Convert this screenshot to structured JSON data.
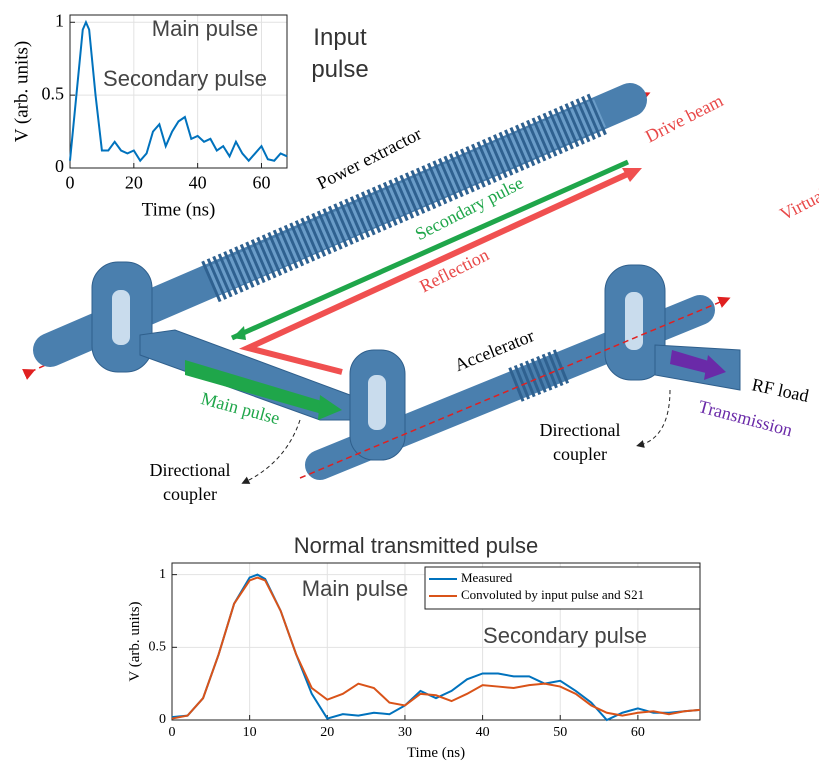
{
  "chart_data": [
    {
      "type": "line",
      "title": "Input pulse",
      "xlabel": "Time (ns)",
      "ylabel": "V (arb. units)",
      "annotations": [
        "Main pulse",
        "Secondary pulse"
      ],
      "x": [
        0,
        2,
        4,
        5,
        6,
        8,
        10,
        12,
        14,
        16,
        18,
        20,
        22,
        24,
        26,
        28,
        30,
        32,
        34,
        36,
        38,
        40,
        42,
        44,
        46,
        48,
        50,
        52,
        54,
        56,
        58,
        60,
        62,
        64,
        66,
        68
      ],
      "values": [
        0.05,
        0.5,
        0.95,
        1.0,
        0.95,
        0.5,
        0.12,
        0.12,
        0.18,
        0.12,
        0.1,
        0.12,
        0.05,
        0.1,
        0.25,
        0.3,
        0.15,
        0.25,
        0.32,
        0.35,
        0.2,
        0.22,
        0.18,
        0.2,
        0.12,
        0.15,
        0.08,
        0.18,
        0.1,
        0.05,
        0.1,
        0.15,
        0.06,
        0.05,
        0.1,
        0.08
      ],
      "color": "#0072bd",
      "xlim": [
        0,
        68
      ],
      "xticks": [
        0,
        20,
        40,
        60
      ],
      "ylim": [
        0,
        1.05
      ],
      "yticks": [
        0,
        0.5,
        1
      ],
      "grid": true
    },
    {
      "type": "line",
      "title": "Normal transmitted pulse",
      "xlabel": "Time (ns)",
      "ylabel": "V (arb. units)",
      "annotations": [
        "Main pulse",
        "Secondary pulse"
      ],
      "x": [
        0,
        2,
        4,
        6,
        8,
        10,
        11,
        12,
        14,
        16,
        18,
        20,
        22,
        24,
        26,
        28,
        30,
        32,
        34,
        36,
        38,
        40,
        42,
        44,
        46,
        48,
        50,
        52,
        54,
        56,
        58,
        60,
        62,
        64,
        66,
        68
      ],
      "series": [
        {
          "name": "Measured",
          "color": "#0072bd",
          "values": [
            0.02,
            0.03,
            0.15,
            0.45,
            0.8,
            0.98,
            1.0,
            0.97,
            0.75,
            0.45,
            0.18,
            0.01,
            0.04,
            0.03,
            0.05,
            0.04,
            0.1,
            0.2,
            0.15,
            0.2,
            0.28,
            0.32,
            0.32,
            0.3,
            0.3,
            0.25,
            0.27,
            0.2,
            0.12,
            0.0,
            0.05,
            0.08,
            0.05,
            0.05,
            0.06,
            0.07
          ]
        },
        {
          "name": "Convoluted by input pulse and S21",
          "color": "#d95319",
          "values": [
            0.01,
            0.03,
            0.15,
            0.45,
            0.8,
            0.96,
            0.98,
            0.96,
            0.75,
            0.45,
            0.22,
            0.14,
            0.18,
            0.25,
            0.22,
            0.12,
            0.1,
            0.18,
            0.17,
            0.13,
            0.18,
            0.24,
            0.23,
            0.22,
            0.24,
            0.25,
            0.23,
            0.18,
            0.1,
            0.05,
            0.03,
            0.05,
            0.06,
            0.04,
            0.06,
            0.07
          ]
        }
      ],
      "xlim": [
        0,
        68
      ],
      "xticks": [
        0,
        10,
        20,
        30,
        40,
        50,
        60
      ],
      "ylim": [
        0,
        1.08
      ],
      "yticks": [
        0,
        0.5,
        1
      ],
      "grid": true,
      "legend": "upper right"
    }
  ],
  "diagram": {
    "power_extractor": "Power extractor",
    "drive_beam": "Drive beam",
    "secondary_pulse": "Secondary pulse",
    "reflection": "Reflection",
    "witness_beam": "Virtual witness beam",
    "accelerator": "Accelerator",
    "rf_load": "RF load",
    "main_pulse": "Main pulse",
    "transmission": "Transmission",
    "coupler_left": "Directional coupler",
    "coupler_right": "Directional coupler"
  }
}
